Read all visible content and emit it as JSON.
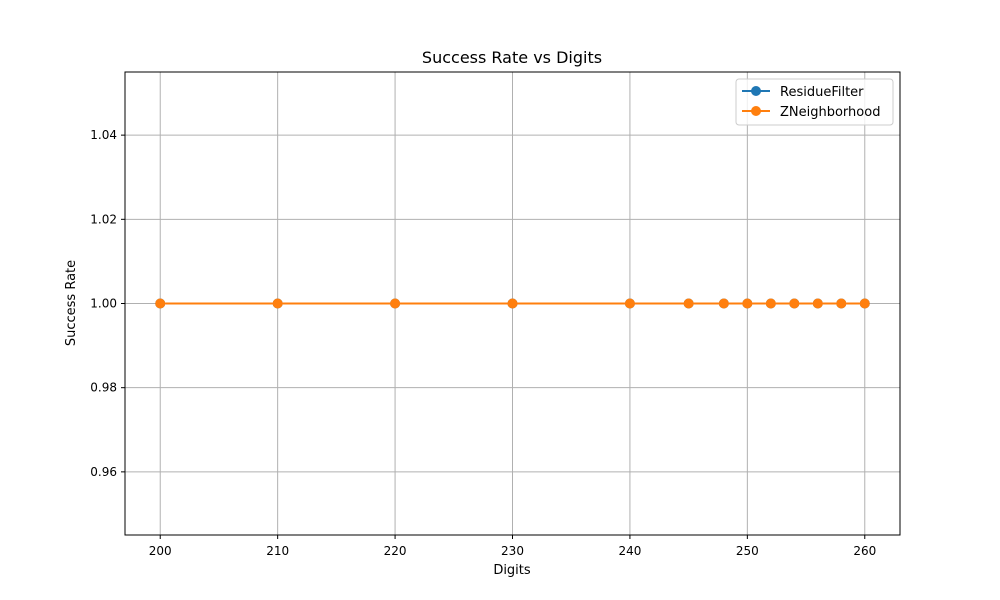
{
  "chart_data": {
    "type": "line",
    "title": "Success Rate vs Digits",
    "xlabel": "Digits",
    "ylabel": "Success Rate",
    "xlim": [
      197,
      263
    ],
    "ylim": [
      0.945,
      1.055
    ],
    "xticks": [
      200,
      210,
      220,
      230,
      240,
      250,
      260
    ],
    "yticks": [
      0.96,
      0.98,
      1.0,
      1.02,
      1.04
    ],
    "ytick_labels": [
      "0.96",
      "0.98",
      "1.00",
      "1.02",
      "1.04"
    ],
    "grid": true,
    "legend_position": "upper right",
    "x": [
      200,
      210,
      220,
      230,
      240,
      245,
      248,
      250,
      252,
      254,
      256,
      258,
      260
    ],
    "series": [
      {
        "name": "ResidueFilter",
        "color": "#1f77b4",
        "marker": "circle",
        "values": [
          1,
          1,
          1,
          1,
          1,
          1,
          1,
          1,
          1,
          1,
          1,
          1,
          1
        ]
      },
      {
        "name": "ZNeighborhood",
        "color": "#ff7f0e",
        "marker": "circle",
        "values": [
          1,
          1,
          1,
          1,
          1,
          1,
          1,
          1,
          1,
          1,
          1,
          1,
          1
        ]
      }
    ]
  }
}
